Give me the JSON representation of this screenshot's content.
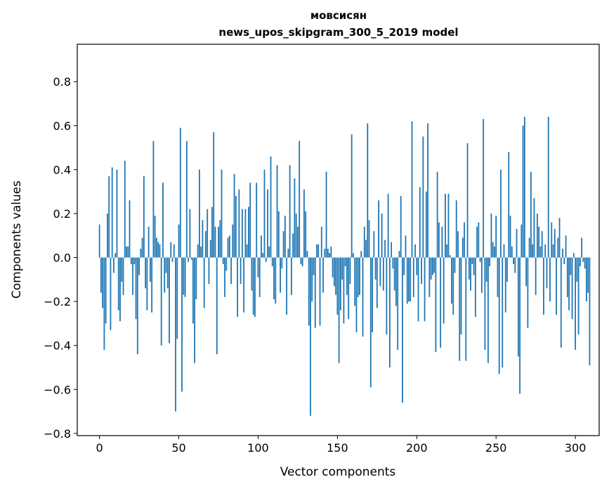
{
  "chart_data": {
    "type": "bar",
    "title_line1": "мовсисян",
    "title_line2": "news_upos_skipgram_300_5_2019 model",
    "xlabel": "Vector components",
    "ylabel": "Components values",
    "xlim": [
      -14,
      315
    ],
    "ylim": [
      -0.81,
      0.97
    ],
    "xticks": [
      0,
      50,
      100,
      150,
      200,
      250,
      300
    ],
    "xtick_labels": [
      "0",
      "50",
      "100",
      "150",
      "200",
      "250",
      "300"
    ],
    "yticks": [
      -0.8,
      -0.6,
      -0.4,
      -0.2,
      0.0,
      0.2,
      0.4,
      0.6,
      0.8
    ],
    "ytick_labels": [
      "−0.8",
      "−0.6",
      "−0.4",
      "−0.2",
      "0.0",
      "0.2",
      "0.4",
      "0.6",
      "0.8"
    ],
    "bar_color": "#1f77b4",
    "values": [
      0.15,
      -0.16,
      -0.23,
      -0.42,
      -0.3,
      0.2,
      0.37,
      -0.33,
      0.41,
      -0.07,
      0.02,
      0.4,
      -0.24,
      -0.29,
      -0.11,
      -0.17,
      0.44,
      0.05,
      0.05,
      0.26,
      -0.03,
      -0.17,
      -0.03,
      -0.28,
      -0.44,
      -0.08,
      0.04,
      0.09,
      0.37,
      -0.14,
      -0.24,
      0.14,
      -0.11,
      -0.25,
      0.53,
      0.19,
      0.09,
      0.07,
      0.06,
      -0.4,
      0.34,
      -0.16,
      -0.07,
      -0.14,
      -0.39,
      0.07,
      -0.02,
      0.06,
      -0.7,
      -0.37,
      0.15,
      0.59,
      -0.61,
      -0.17,
      -0.18,
      0.53,
      -0.02,
      0.22,
      -0.01,
      -0.3,
      -0.48,
      -0.19,
      0.06,
      0.4,
      0.05,
      0.17,
      -0.23,
      0.12,
      0.22,
      -0.12,
      0.08,
      0.23,
      0.57,
      0.14,
      -0.44,
      0.14,
      0.17,
      0.4,
      -0.03,
      -0.18,
      -0.06,
      0.09,
      0.1,
      -0.12,
      0.15,
      0.38,
      0.28,
      -0.27,
      0.31,
      -0.12,
      0.22,
      -0.25,
      0.22,
      0.06,
      0.23,
      0.34,
      -0.15,
      -0.26,
      -0.27,
      0.34,
      -0.09,
      -0.18,
      0.1,
      0.02,
      0.4,
      -0.02,
      0.31,
      0.05,
      0.46,
      -0.04,
      -0.19,
      -0.21,
      0.42,
      0.21,
      -0.16,
      -0.05,
      0.12,
      0.19,
      -0.26,
      0.04,
      0.42,
      -0.17,
      0.11,
      0.36,
      0.2,
      0.14,
      0.53,
      -0.03,
      -0.04,
      0.31,
      0.21,
      0.03,
      -0.31,
      -0.72,
      -0.2,
      -0.08,
      -0.32,
      0.06,
      0.06,
      -0.31,
      0.14,
      -0.16,
      0.04,
      0.39,
      0.04,
      0.02,
      0.05,
      -0.09,
      -0.13,
      -0.17,
      -0.26,
      -0.48,
      -0.24,
      -0.1,
      -0.3,
      -0.04,
      -0.17,
      -0.28,
      -0.12,
      0.56,
      0.02,
      -0.22,
      -0.34,
      -0.18,
      -0.17,
      0.03,
      -0.36,
      0.14,
      0.08,
      0.61,
      0.17,
      -0.59,
      -0.34,
      0.12,
      -0.1,
      -0.23,
      0.26,
      -0.13,
      0.2,
      -0.15,
      0.08,
      -0.35,
      0.29,
      -0.5,
      0.07,
      -0.05,
      -0.15,
      -0.22,
      -0.42,
      0.03,
      0.28,
      -0.66,
      -0.08,
      0.1,
      -0.21,
      -0.2,
      -0.2,
      0.62,
      -0.18,
      0.06,
      -0.08,
      -0.29,
      0.32,
      -0.12,
      0.55,
      -0.29,
      0.3,
      0.61,
      -0.18,
      -0.1,
      -0.08,
      -0.07,
      -0.43,
      0.39,
      0.16,
      -0.41,
      0.14,
      -0.3,
      0.29,
      0.06,
      0.29,
      0.01,
      -0.21,
      -0.26,
      -0.07,
      0.26,
      0.12,
      -0.47,
      -0.35,
      0.09,
      0.16,
      -0.47,
      0.52,
      -0.1,
      -0.15,
      -0.03,
      -0.08,
      -0.27,
      0.14,
      0.16,
      -0.02,
      -0.16,
      0.63,
      -0.42,
      -0.11,
      -0.48,
      -0.04,
      0.2,
      0.07,
      0.05,
      0.19,
      -0.18,
      -0.53,
      0.4,
      -0.5,
      0.06,
      -0.25,
      -0.11,
      0.48,
      0.19,
      0.05,
      -0.03,
      -0.07,
      0.13,
      -0.45,
      -0.62,
      0.15,
      0.6,
      0.64,
      -0.13,
      -0.32,
      0.09,
      0.39,
      0.06,
      0.27,
      -0.17,
      0.2,
      0.14,
      0.05,
      0.12,
      -0.26,
      0.06,
      -0.14,
      0.64,
      -0.2,
      0.16,
      0.06,
      0.13,
      -0.26,
      0.09,
      0.18,
      -0.41,
      0.04,
      -0.03,
      0.1,
      -0.18,
      -0.24,
      -0.08,
      -0.28,
      0.02,
      -0.42,
      -0.11,
      -0.35,
      -0.04,
      0.09,
      -0.02,
      -0.05,
      -0.2,
      -0.16,
      -0.49
    ]
  }
}
